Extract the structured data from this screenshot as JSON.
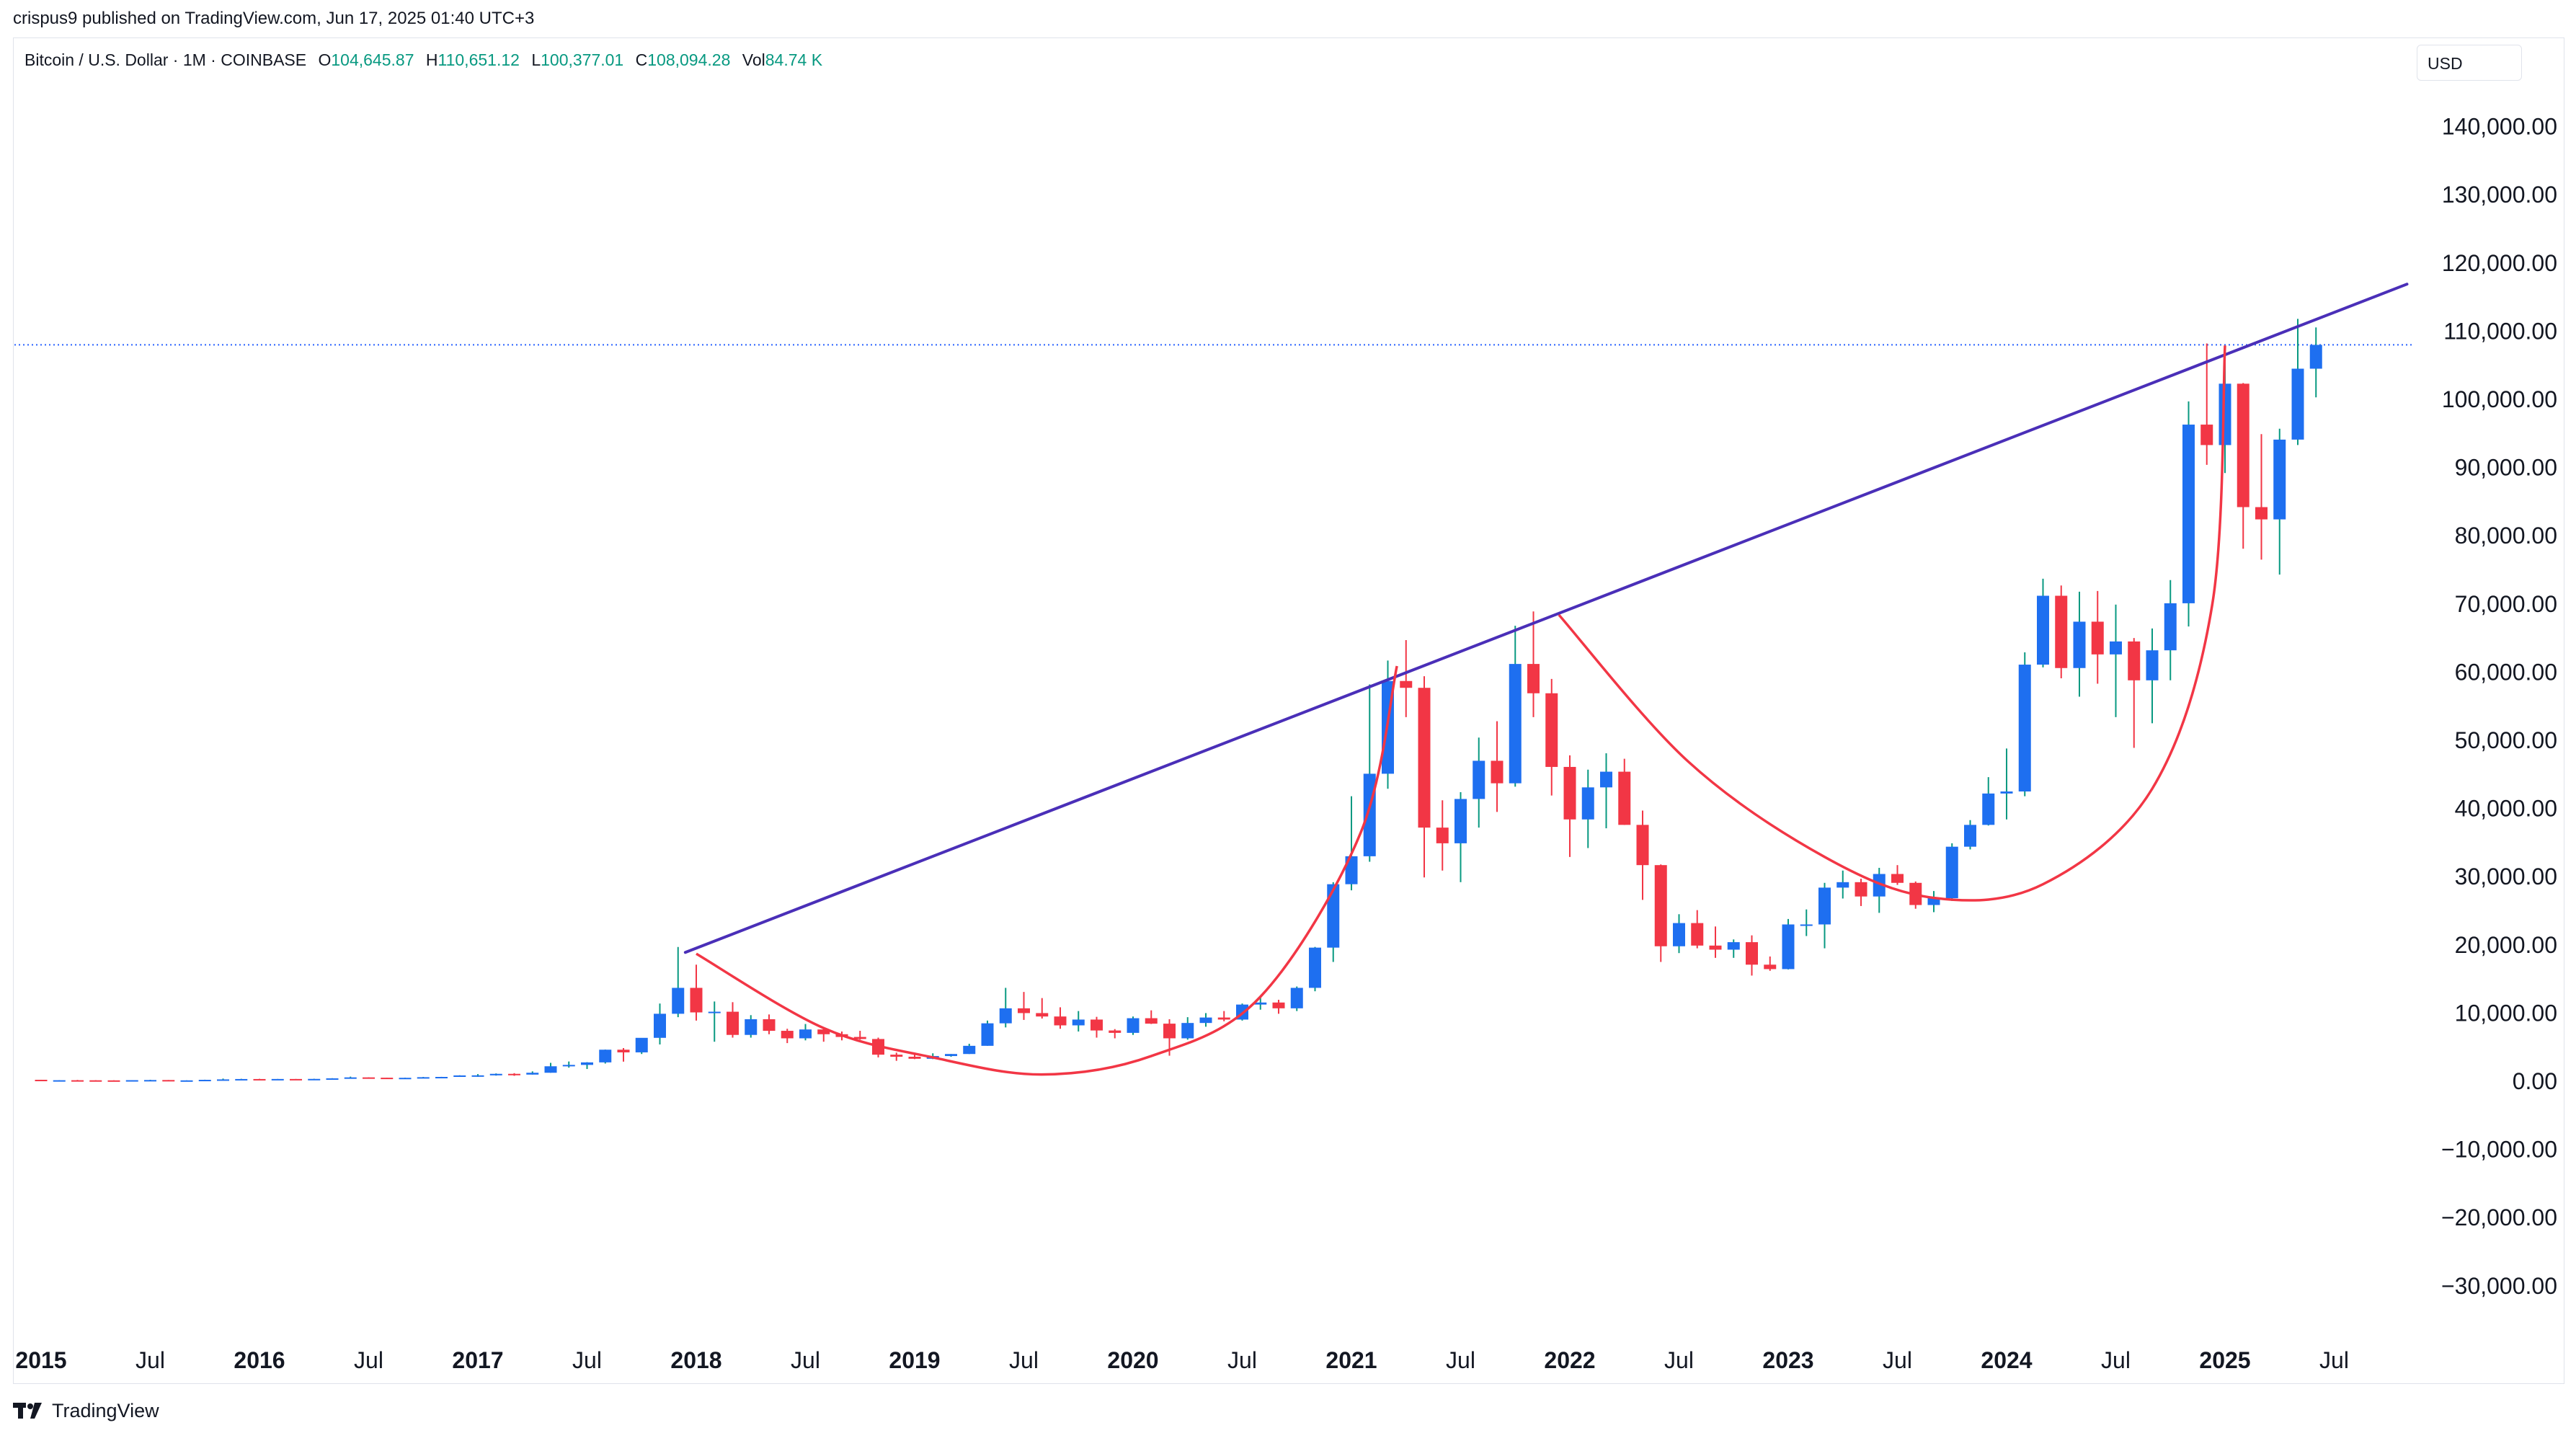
{
  "attribution": "crispus9 published on TradingView.com, Jun 17, 2025 01:40 UTC+3",
  "legend": {
    "symbol": "Bitcoin / U.S. Dollar · 1M · COINBASE",
    "open_label": "O",
    "open": "104,645.87",
    "high_label": "H",
    "high": "110,651.12",
    "low_label": "L",
    "low": "100,377.01",
    "close_label": "C",
    "close": "108,094.28",
    "vol_label": "Vol",
    "vol": "84.74 K"
  },
  "currency": "USD",
  "brand": "TradingView",
  "colors": {
    "up": "#1e6ff0",
    "down": "#f23645",
    "wick_up": "#089981",
    "wick_down": "#f23645",
    "trendline": "#4a2fb8",
    "curve": "#f23645",
    "last_price_line": "#2962ff"
  },
  "chart_data": {
    "type": "candlestick",
    "interval": "1M",
    "y_tick_labels": [
      "140,000.00",
      "130,000.00",
      "120,000.00",
      "110,000.00",
      "100,000.00",
      "90,000.00",
      "80,000.00",
      "70,000.00",
      "60,000.00",
      "50,000.00",
      "40,000.00",
      "30,000.00",
      "20,000.00",
      "10,000.00",
      "0.00",
      "−10,000.00",
      "−20,000.00",
      "−30,000.00"
    ],
    "y_tick_values": [
      140000,
      130000,
      120000,
      110000,
      100000,
      90000,
      80000,
      70000,
      60000,
      50000,
      40000,
      30000,
      20000,
      10000,
      0,
      -10000,
      -20000,
      -30000
    ],
    "ylim": [
      -37000,
      147000
    ],
    "x_ticks": [
      {
        "label": "2015",
        "m": 0,
        "bold": true
      },
      {
        "label": "Jul",
        "m": 6,
        "bold": false
      },
      {
        "label": "2016",
        "m": 12,
        "bold": true
      },
      {
        "label": "Jul",
        "m": 18,
        "bold": false
      },
      {
        "label": "2017",
        "m": 24,
        "bold": true
      },
      {
        "label": "Jul",
        "m": 30,
        "bold": false
      },
      {
        "label": "2018",
        "m": 36,
        "bold": true
      },
      {
        "label": "Jul",
        "m": 42,
        "bold": false
      },
      {
        "label": "2019",
        "m": 48,
        "bold": true
      },
      {
        "label": "Jul",
        "m": 54,
        "bold": false
      },
      {
        "label": "2020",
        "m": 60,
        "bold": true
      },
      {
        "label": "Jul",
        "m": 66,
        "bold": false
      },
      {
        "label": "2021",
        "m": 72,
        "bold": true
      },
      {
        "label": "Jul",
        "m": 78,
        "bold": false
      },
      {
        "label": "2022",
        "m": 84,
        "bold": true
      },
      {
        "label": "Jul",
        "m": 90,
        "bold": false
      },
      {
        "label": "2023",
        "m": 96,
        "bold": true
      },
      {
        "label": "Jul",
        "m": 102,
        "bold": false
      },
      {
        "label": "2024",
        "m": 108,
        "bold": true
      },
      {
        "label": "Jul",
        "m": 114,
        "bold": false
      },
      {
        "label": "2025",
        "m": 120,
        "bold": true
      },
      {
        "label": "Jul",
        "m": 126,
        "bold": false
      }
    ],
    "candles_start": "2015-01",
    "candles_ohlc": [
      [
        320,
        320,
        180,
        220
      ],
      [
        220,
        265,
        200,
        255
      ],
      [
        255,
        300,
        240,
        245
      ],
      [
        245,
        265,
        215,
        235
      ],
      [
        235,
        250,
        220,
        230
      ],
      [
        230,
        265,
        220,
        262
      ],
      [
        262,
        320,
        255,
        284
      ],
      [
        284,
        285,
        200,
        230
      ],
      [
        230,
        245,
        220,
        236
      ],
      [
        236,
        330,
        236,
        314
      ],
      [
        314,
        495,
        310,
        377
      ],
      [
        377,
        465,
        350,
        430
      ],
      [
        430,
        460,
        350,
        368
      ],
      [
        368,
        440,
        365,
        437
      ],
      [
        437,
        440,
        390,
        416
      ],
      [
        416,
        470,
        410,
        448
      ],
      [
        448,
        550,
        440,
        530
      ],
      [
        530,
        780,
        525,
        670
      ],
      [
        670,
        680,
        480,
        624
      ],
      [
        624,
        620,
        560,
        575
      ],
      [
        575,
        630,
        590,
        610
      ],
      [
        610,
        740,
        600,
        700
      ],
      [
        700,
        750,
        690,
        740
      ],
      [
        740,
        980,
        740,
        960
      ],
      [
        960,
        1150,
        750,
        970
      ],
      [
        970,
        1250,
        930,
        1190
      ],
      [
        1190,
        1290,
        900,
        1080
      ],
      [
        1080,
        1550,
        1080,
        1350
      ],
      [
        1350,
        2800,
        1350,
        2300
      ],
      [
        2300,
        3000,
        2100,
        2500
      ],
      [
        2500,
        2900,
        1900,
        2870
      ],
      [
        2870,
        4750,
        2700,
        4730
      ],
      [
        4730,
        4970,
        2980,
        4340
      ],
      [
        4340,
        6450,
        4100,
        6470
      ],
      [
        6470,
        11500,
        5500,
        10000
      ],
      [
        10000,
        19800,
        9500,
        13800
      ],
      [
        13800,
        17200,
        9000,
        10200
      ],
      [
        10200,
        11800,
        5900,
        10300
      ],
      [
        10300,
        11700,
        6500,
        6900
      ],
      [
        6900,
        9800,
        6500,
        9200
      ],
      [
        9200,
        9900,
        7000,
        7500
      ],
      [
        7500,
        7800,
        5700,
        6400
      ],
      [
        6400,
        8500,
        6100,
        7700
      ],
      [
        7700,
        7800,
        5900,
        7000
      ],
      [
        7000,
        7400,
        6100,
        6600
      ],
      [
        6600,
        7500,
        6200,
        6300
      ],
      [
        6300,
        6500,
        3600,
        4000
      ],
      [
        4000,
        4300,
        3100,
        3700
      ],
      [
        3700,
        4100,
        3350,
        3400
      ],
      [
        3400,
        4200,
        3350,
        3800
      ],
      [
        3800,
        4100,
        3700,
        4100
      ],
      [
        4100,
        5600,
        4100,
        5300
      ],
      [
        5300,
        9000,
        5300,
        8600
      ],
      [
        8600,
        13800,
        8000,
        10800
      ],
      [
        10800,
        13200,
        9100,
        10100
      ],
      [
        10100,
        12300,
        9300,
        9600
      ],
      [
        9600,
        10950,
        7800,
        8300
      ],
      [
        8300,
        10400,
        7400,
        9150
      ],
      [
        9150,
        9550,
        6500,
        7550
      ],
      [
        7550,
        7750,
        6400,
        7200
      ],
      [
        7200,
        9600,
        6900,
        9350
      ],
      [
        9350,
        10500,
        8500,
        8550
      ],
      [
        8550,
        9200,
        3850,
        6400
      ],
      [
        6400,
        9500,
        6200,
        8650
      ],
      [
        8650,
        10100,
        8100,
        9450
      ],
      [
        9450,
        10400,
        8900,
        9150
      ],
      [
        9150,
        11500,
        9000,
        11350
      ],
      [
        11350,
        12500,
        10600,
        11650
      ],
      [
        11650,
        12050,
        10000,
        10800
      ],
      [
        10800,
        14000,
        10400,
        13800
      ],
      [
        13800,
        19800,
        13300,
        19700
      ],
      [
        19700,
        29300,
        17600,
        29000
      ],
      [
        29000,
        41900,
        28100,
        33100
      ],
      [
        33100,
        58300,
        32300,
        45200
      ],
      [
        45200,
        61800,
        43000,
        58800
      ],
      [
        58800,
        64800,
        53500,
        57800
      ],
      [
        57800,
        59500,
        30000,
        37300
      ],
      [
        37300,
        41300,
        31000,
        35000
      ],
      [
        35000,
        42500,
        29300,
        41500
      ],
      [
        41500,
        50500,
        37300,
        47100
      ],
      [
        47100,
        52900,
        39600,
        43800
      ],
      [
        43800,
        66900,
        43300,
        61300
      ],
      [
        61300,
        69000,
        53500,
        57000
      ],
      [
        57000,
        59100,
        42000,
        46200
      ],
      [
        46200,
        47900,
        33000,
        38500
      ],
      [
        38500,
        45800,
        34300,
        43200
      ],
      [
        43200,
        48200,
        37200,
        45500
      ],
      [
        45500,
        47400,
        37700,
        37700
      ],
      [
        37700,
        39800,
        26700,
        31800
      ],
      [
        31800,
        31900,
        17600,
        19900
      ],
      [
        19900,
        24600,
        18900,
        23300
      ],
      [
        23300,
        25200,
        19600,
        20000
      ],
      [
        20000,
        22800,
        18200,
        19400
      ],
      [
        19400,
        20900,
        18200,
        20500
      ],
      [
        20500,
        21500,
        15600,
        17200
      ],
      [
        17200,
        18400,
        16300,
        16550
      ],
      [
        16550,
        23900,
        16500,
        23100
      ],
      [
        23100,
        25300,
        21400,
        23100
      ],
      [
        23100,
        29200,
        19600,
        28500
      ],
      [
        28500,
        31000,
        26900,
        29300
      ],
      [
        29300,
        29800,
        25800,
        27200
      ],
      [
        27200,
        31400,
        24800,
        30500
      ],
      [
        30500,
        31800,
        28900,
        29200
      ],
      [
        29200,
        29400,
        25400,
        25950
      ],
      [
        25950,
        28000,
        24900,
        26950
      ],
      [
        26950,
        35000,
        26550,
        34500
      ],
      [
        34500,
        38400,
        34100,
        37700
      ],
      [
        37700,
        44700,
        37600,
        42300
      ],
      [
        42300,
        48900,
        38500,
        42600
      ],
      [
        42600,
        63000,
        41900,
        61200
      ],
      [
        61200,
        73800,
        60800,
        71300
      ],
      [
        71300,
        72800,
        59200,
        60700
      ],
      [
        60700,
        71900,
        56500,
        67500
      ],
      [
        67500,
        72000,
        58400,
        62700
      ],
      [
        62700,
        70000,
        53500,
        64600
      ],
      [
        64600,
        65100,
        49000,
        58900
      ],
      [
        58900,
        66500,
        52600,
        63300
      ],
      [
        63300,
        73600,
        58900,
        70200
      ],
      [
        70200,
        99800,
        66800,
        96400
      ],
      [
        96400,
        108300,
        90500,
        93400
      ],
      [
        93400,
        106500,
        89300,
        102400
      ],
      [
        102400,
        102500,
        78200,
        84300
      ],
      [
        84300,
        95000,
        76600,
        82500
      ],
      [
        82500,
        95800,
        74400,
        94200
      ],
      [
        94200,
        111900,
        93400,
        104600
      ],
      [
        104600,
        110650,
        100400,
        108094
      ]
    ],
    "trendline_points": [
      [
        35.4,
        19000
      ],
      [
        130.0,
        117000
      ]
    ],
    "cup_left": [
      [
        36.0,
        18800
      ],
      [
        43.0,
        7900
      ],
      [
        49.0,
        3600
      ],
      [
        55.0,
        1100
      ],
      [
        61.0,
        3800
      ],
      [
        67.0,
        12500
      ],
      [
        72.5,
        36500
      ],
      [
        74.5,
        61000
      ]
    ],
    "cup_right": [
      [
        83.4,
        68500
      ],
      [
        90.5,
        47000
      ],
      [
        98.0,
        33000
      ],
      [
        104.0,
        27000
      ],
      [
        110.0,
        29000
      ],
      [
        116.0,
        43000
      ],
      [
        119.3,
        70000
      ],
      [
        120.0,
        108000
      ]
    ],
    "last_price": 108094.28
  }
}
